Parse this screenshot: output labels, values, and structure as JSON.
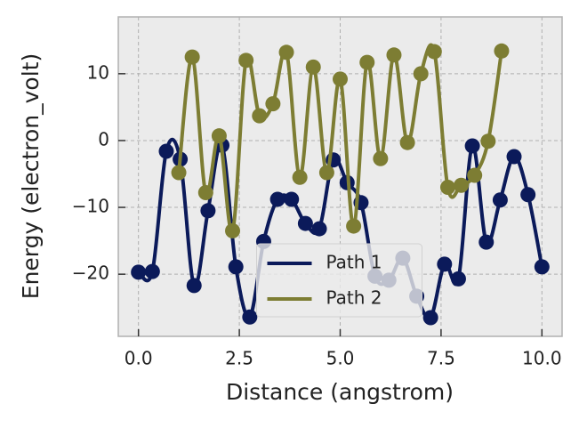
{
  "chart_data": {
    "type": "line",
    "xlabel": "Distance (angstrom)",
    "ylabel": "Energy (electron_volt)",
    "xlim": [
      -0.5,
      10.5
    ],
    "ylim": [
      -29.3,
      18.5
    ],
    "xticks": [
      {
        "value": 0,
        "label": "0.0"
      },
      {
        "value": 2.5,
        "label": "2.5"
      },
      {
        "value": 5,
        "label": "5.0"
      },
      {
        "value": 7.5,
        "label": "7.5"
      },
      {
        "value": 10,
        "label": "10.0"
      }
    ],
    "yticks": [
      {
        "value": -20,
        "label": "−20"
      },
      {
        "value": -10,
        "label": "−10"
      },
      0,
      10
    ],
    "grid": true,
    "legend": "lower center",
    "series": [
      {
        "name": "Path 1",
        "color": "#0b1a5a",
        "x": [
          0,
          0.345,
          0.69,
          1.034,
          1.379,
          1.724,
          2.069,
          2.414,
          2.759,
          3.103,
          3.448,
          3.793,
          4.138,
          4.483,
          4.828,
          5.172,
          5.517,
          5.862,
          6.207,
          6.552,
          6.897,
          7.241,
          7.586,
          7.931,
          8.276,
          8.621,
          8.966,
          9.31,
          9.655,
          10
        ],
        "values": [
          -19.7,
          -19.6,
          -1.6,
          -2.8,
          -21.7,
          -10.5,
          -0.7,
          -18.9,
          -26.4,
          -15.1,
          -8.8,
          -8.8,
          -12.4,
          -13.2,
          -2.9,
          -6.3,
          -9.3,
          -20.3,
          -20.9,
          -17.6,
          -23.3,
          -26.5,
          -18.5,
          -20.7,
          -0.8,
          -15.2,
          -8.9,
          -2.4,
          -8.1,
          -18.9
        ]
      },
      {
        "name": "Path 2",
        "color": "#7d7d33",
        "x": [
          1,
          1.333,
          1.667,
          2,
          2.333,
          2.667,
          3,
          3.333,
          3.667,
          4,
          4.333,
          4.667,
          5,
          5.333,
          5.667,
          6,
          6.333,
          6.667,
          7,
          7.333,
          7.667,
          8,
          8.333,
          8.667,
          9
        ],
        "values": [
          -4.8,
          12.5,
          -7.8,
          0.7,
          -13.5,
          12,
          3.7,
          5.5,
          13.2,
          -5.5,
          11,
          -4.8,
          9.2,
          -12.8,
          11.7,
          -2.7,
          12.8,
          -0.3,
          10,
          13.3,
          -7,
          -6.7,
          -5.2,
          -0.1,
          13.4
        ]
      }
    ]
  }
}
